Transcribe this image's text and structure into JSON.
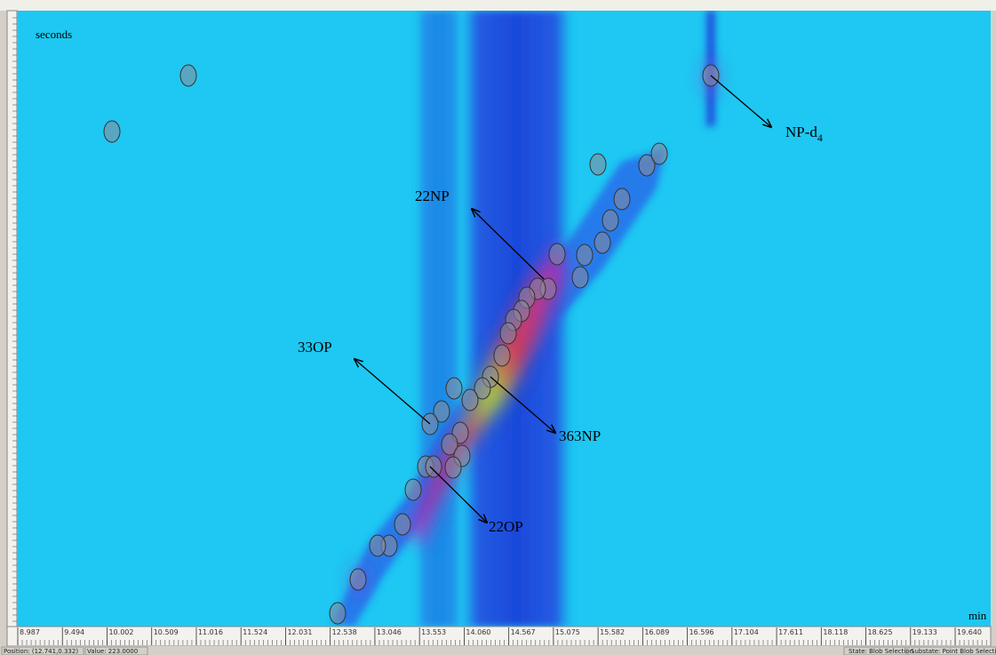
{
  "plot": {
    "y_axis_label": "seconds",
    "x_axis_label": "min",
    "x_ticks": [
      "8.987",
      "9.494",
      "10.002",
      "10.509",
      "11.016",
      "11.524",
      "12.031",
      "12.538",
      "13.046",
      "13.553",
      "14.060",
      "14.567",
      "15.075",
      "15.582",
      "16.089",
      "16.596",
      "17.104",
      "17.611",
      "18.118",
      "18.625",
      "19.133",
      "19.640"
    ]
  },
  "annotations": [
    {
      "text": "NP-d",
      "sub": "4"
    },
    {
      "text": "22NP"
    },
    {
      "text": "33OP"
    },
    {
      "text": "363NP"
    },
    {
      "text": "22OP"
    }
  ],
  "status_bar": {
    "position": "Position: (12.741,0.332)",
    "value": "Value: 223.0000",
    "state": "State: Blob Selection",
    "substate": "Substate: Point Blob Selectio"
  }
}
